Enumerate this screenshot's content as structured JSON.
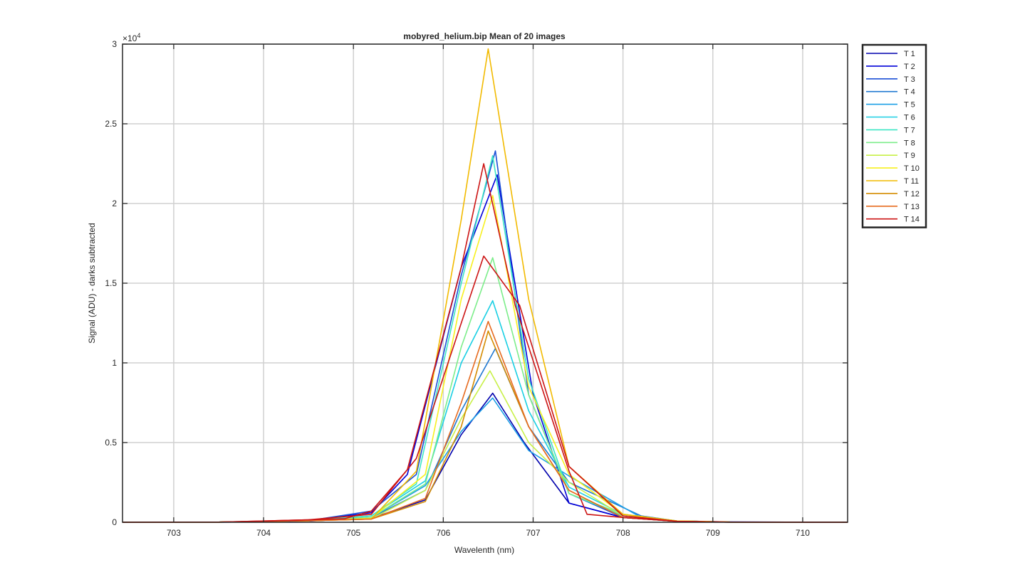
{
  "chart_data": {
    "type": "line",
    "title": "mobyred_helium.bip  Mean of 20 images",
    "xlabel": "Wavelenth (nm)",
    "ylabel": "Signal (ADU) - darks subtracted",
    "exponent_label": "×10",
    "exponent_power": "4",
    "xlim": [
      702.43,
      710.5
    ],
    "ylim": [
      0,
      30000
    ],
    "xticks": [
      703,
      704,
      705,
      706,
      707,
      708,
      709,
      710
    ],
    "xtick_labels": [
      "703",
      "704",
      "705",
      "706",
      "707",
      "708",
      "709",
      "710"
    ],
    "yticks": [
      0,
      5000,
      10000,
      15000,
      20000,
      25000,
      30000
    ],
    "ytick_labels": [
      "0",
      "0.5",
      "1",
      "1.5",
      "2",
      "2.5",
      "3"
    ],
    "grid": true,
    "legend_position": "outside-top-right",
    "series": [
      {
        "name": "T 1",
        "color": "#0000ad",
        "points": [
          [
            702.43,
            0
          ],
          [
            703.5,
            0
          ],
          [
            704.5,
            80
          ],
          [
            705.2,
            250
          ],
          [
            705.8,
            1400
          ],
          [
            706.2,
            5500
          ],
          [
            706.55,
            8100
          ],
          [
            706.9,
            5000
          ],
          [
            707.4,
            1200
          ],
          [
            708.0,
            300
          ],
          [
            708.6,
            80
          ],
          [
            709.2,
            20
          ],
          [
            710.5,
            0
          ]
        ]
      },
      {
        "name": "T 2",
        "color": "#0000d9",
        "points": [
          [
            702.43,
            0
          ],
          [
            703.5,
            10
          ],
          [
            704.5,
            100
          ],
          [
            705.2,
            600
          ],
          [
            705.6,
            3000
          ],
          [
            706.2,
            16000
          ],
          [
            706.6,
            21800
          ],
          [
            707.0,
            8000
          ],
          [
            707.4,
            1200
          ],
          [
            708.0,
            300
          ],
          [
            708.6,
            60
          ],
          [
            709.2,
            10
          ],
          [
            710.5,
            0
          ]
        ]
      },
      {
        "name": "T 3",
        "color": "#1a4fd6",
        "points": [
          [
            702.43,
            0
          ],
          [
            703.5,
            10
          ],
          [
            704.5,
            100
          ],
          [
            705.2,
            700
          ],
          [
            705.7,
            3000
          ],
          [
            706.2,
            15500
          ],
          [
            706.58,
            23300
          ],
          [
            706.95,
            8000
          ],
          [
            707.4,
            1800
          ],
          [
            708.0,
            300
          ],
          [
            708.6,
            60
          ],
          [
            709.2,
            10
          ],
          [
            710.5,
            0
          ]
        ]
      },
      {
        "name": "T 4",
        "color": "#1f78d1",
        "points": [
          [
            702.43,
            0
          ],
          [
            703.5,
            10
          ],
          [
            704.5,
            100
          ],
          [
            705.2,
            300
          ],
          [
            705.8,
            2000
          ],
          [
            706.2,
            7000
          ],
          [
            706.58,
            10900
          ],
          [
            706.95,
            6000
          ],
          [
            707.4,
            2500
          ],
          [
            708.2,
            400
          ],
          [
            708.6,
            80
          ],
          [
            709.2,
            10
          ],
          [
            710.5,
            0
          ]
        ]
      },
      {
        "name": "T 5",
        "color": "#1c9fe6",
        "points": [
          [
            702.43,
            0
          ],
          [
            703.5,
            10
          ],
          [
            704.5,
            100
          ],
          [
            705.2,
            300
          ],
          [
            705.8,
            2300
          ],
          [
            706.2,
            5700
          ],
          [
            706.55,
            7800
          ],
          [
            706.95,
            4500
          ],
          [
            707.4,
            2900
          ],
          [
            708.2,
            300
          ],
          [
            708.6,
            80
          ],
          [
            709.2,
            10
          ],
          [
            710.5,
            0
          ]
        ]
      },
      {
        "name": "T 6",
        "color": "#19cfe3",
        "points": [
          [
            702.43,
            0
          ],
          [
            703.5,
            10
          ],
          [
            704.5,
            100
          ],
          [
            705.2,
            400
          ],
          [
            705.8,
            2600
          ],
          [
            706.2,
            10000
          ],
          [
            706.55,
            13900
          ],
          [
            706.95,
            7000
          ],
          [
            707.4,
            2200
          ],
          [
            708.0,
            500
          ],
          [
            708.6,
            80
          ],
          [
            709.2,
            10
          ],
          [
            710.5,
            0
          ]
        ]
      },
      {
        "name": "T 7",
        "color": "#3ce6c5",
        "points": [
          [
            702.43,
            0
          ],
          [
            703.5,
            10
          ],
          [
            704.5,
            100
          ],
          [
            705.2,
            400
          ],
          [
            705.7,
            2400
          ],
          [
            706.2,
            15000
          ],
          [
            706.55,
            23000
          ],
          [
            706.95,
            9000
          ],
          [
            707.4,
            1800
          ],
          [
            708.0,
            400
          ],
          [
            708.6,
            80
          ],
          [
            709.2,
            10
          ],
          [
            710.5,
            0
          ]
        ]
      },
      {
        "name": "T 8",
        "color": "#7ced8a",
        "points": [
          [
            702.43,
            0
          ],
          [
            703.5,
            10
          ],
          [
            704.5,
            100
          ],
          [
            705.2,
            300
          ],
          [
            705.8,
            2400
          ],
          [
            706.2,
            11000
          ],
          [
            706.55,
            16600
          ],
          [
            706.95,
            8000
          ],
          [
            707.4,
            1800
          ],
          [
            708.0,
            500
          ],
          [
            708.6,
            80
          ],
          [
            709.2,
            10
          ],
          [
            710.5,
            0
          ]
        ]
      },
      {
        "name": "T 9",
        "color": "#c8f048",
        "points": [
          [
            702.43,
            0
          ],
          [
            703.5,
            10
          ],
          [
            704.5,
            100
          ],
          [
            705.2,
            200
          ],
          [
            705.8,
            2000
          ],
          [
            706.2,
            6500
          ],
          [
            706.52,
            9500
          ],
          [
            706.95,
            5000
          ],
          [
            707.4,
            2500
          ],
          [
            708.0,
            400
          ],
          [
            708.6,
            80
          ],
          [
            709.2,
            10
          ],
          [
            710.5,
            0
          ]
        ]
      },
      {
        "name": "T 10",
        "color": "#f7f01e",
        "points": [
          [
            702.43,
            0
          ],
          [
            703.5,
            10
          ],
          [
            704.5,
            100
          ],
          [
            705.2,
            250
          ],
          [
            705.8,
            3000
          ],
          [
            706.2,
            14000
          ],
          [
            706.55,
            20500
          ],
          [
            706.95,
            8500
          ],
          [
            707.4,
            3000
          ],
          [
            708.0,
            500
          ],
          [
            708.6,
            80
          ],
          [
            709.2,
            10
          ],
          [
            710.5,
            0
          ]
        ]
      },
      {
        "name": "T 11",
        "color": "#f2ba00",
        "points": [
          [
            702.43,
            0
          ],
          [
            703.5,
            10
          ],
          [
            704.5,
            100
          ],
          [
            705.2,
            200
          ],
          [
            705.7,
            3200
          ],
          [
            706.2,
            19000
          ],
          [
            706.5,
            29700
          ],
          [
            706.95,
            14000
          ],
          [
            707.4,
            3500
          ],
          [
            708.0,
            500
          ],
          [
            708.6,
            80
          ],
          [
            709.2,
            10
          ],
          [
            710.5,
            0
          ]
        ]
      },
      {
        "name": "T 12",
        "color": "#d48b00",
        "points": [
          [
            702.43,
            0
          ],
          [
            703.5,
            10
          ],
          [
            704.5,
            100
          ],
          [
            705.2,
            200
          ],
          [
            705.8,
            1300
          ],
          [
            706.2,
            6000
          ],
          [
            706.5,
            12000
          ],
          [
            706.95,
            6000
          ],
          [
            707.4,
            2000
          ],
          [
            708.0,
            300
          ],
          [
            708.6,
            60
          ],
          [
            709.2,
            10
          ],
          [
            710.5,
            0
          ]
        ]
      },
      {
        "name": "T 13",
        "color": "#e66a1f",
        "points": [
          [
            702.43,
            0
          ],
          [
            703.5,
            10
          ],
          [
            704.5,
            100
          ],
          [
            705.2,
            200
          ],
          [
            705.8,
            1500
          ],
          [
            706.2,
            7500
          ],
          [
            706.5,
            12600
          ],
          [
            706.95,
            6000
          ],
          [
            707.4,
            2000
          ],
          [
            708.0,
            300
          ],
          [
            708.6,
            60
          ],
          [
            709.2,
            10
          ],
          [
            710.5,
            0
          ]
        ]
      },
      {
        "name": "T 14",
        "color": "#cc1414",
        "points": [
          [
            702.43,
            0
          ],
          [
            703.5,
            10
          ],
          [
            704.5,
            150
          ],
          [
            704.9,
            220
          ],
          [
            705.2,
            700
          ],
          [
            705.6,
            3300
          ],
          [
            706.2,
            16000
          ],
          [
            706.45,
            22500
          ],
          [
            706.8,
            13600
          ],
          [
            707.4,
            3200
          ],
          [
            707.6,
            500
          ],
          [
            708.0,
            300
          ],
          [
            708.6,
            60
          ],
          [
            709.2,
            10
          ],
          [
            710.5,
            0
          ]
        ]
      },
      {
        "name": "",
        "color": "#cc1414",
        "points": [
          [
            702.43,
            0
          ],
          [
            703.5,
            10
          ],
          [
            704.5,
            150
          ],
          [
            705.2,
            500
          ],
          [
            705.7,
            4000
          ],
          [
            706.2,
            12500
          ],
          [
            706.45,
            16700
          ],
          [
            706.85,
            13600
          ],
          [
            707.4,
            3500
          ],
          [
            708.0,
            400
          ],
          [
            708.6,
            60
          ],
          [
            709.2,
            10
          ],
          [
            710.5,
            0
          ]
        ]
      }
    ]
  }
}
